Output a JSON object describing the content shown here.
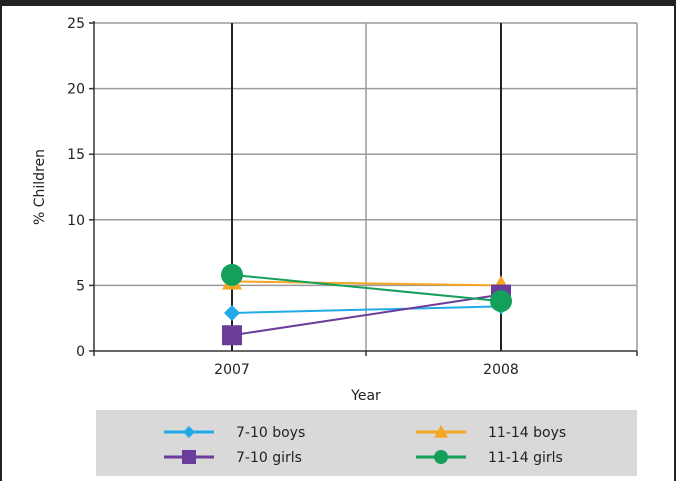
{
  "chart_data": {
    "type": "line",
    "title": "",
    "xlabel": "Year",
    "ylabel": "% Children",
    "x": [
      "2007",
      "2008"
    ],
    "y_ticks": [
      "0",
      "5",
      "10",
      "15",
      "20",
      "25"
    ],
    "ylim": [
      0,
      25
    ],
    "grid": true,
    "legend_position": "bottom",
    "series": [
      {
        "name": "7-10 boys",
        "values": [
          2.9,
          3.4
        ],
        "color": "#22aae6",
        "marker": "diamond"
      },
      {
        "name": "11-14 boys",
        "values": [
          5.3,
          5.0
        ],
        "color": "#f5a623",
        "marker": "triangle"
      },
      {
        "name": "7-10 girls",
        "values": [
          1.2,
          4.3
        ],
        "color": "#6a3d9a",
        "marker": "square"
      },
      {
        "name": "11-14 girls",
        "values": [
          5.8,
          3.8
        ],
        "color": "#14a05a",
        "marker": "circle"
      }
    ]
  }
}
